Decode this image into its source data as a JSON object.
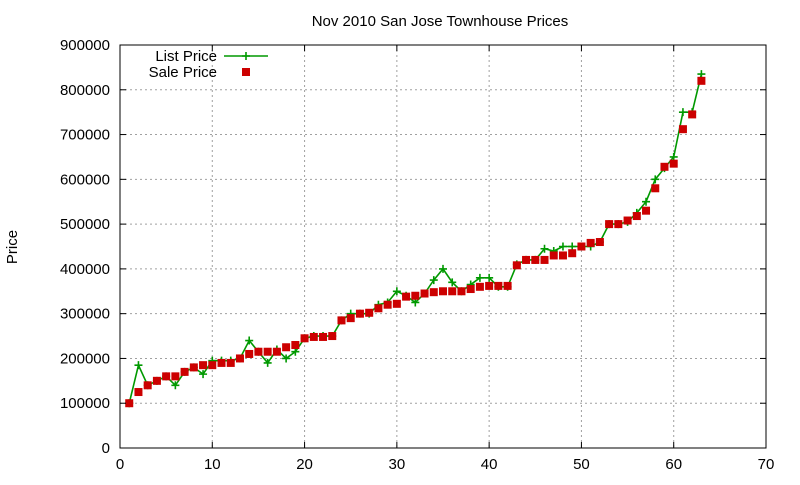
{
  "chart_data": {
    "type": "line",
    "title": "Nov 2010 San Jose Townhouse Prices",
    "xlabel": "",
    "ylabel": "Price",
    "xlim": [
      0,
      70
    ],
    "ylim": [
      0,
      900000
    ],
    "xticks": [
      0,
      10,
      20,
      30,
      40,
      50,
      60,
      70
    ],
    "yticks": [
      0,
      100000,
      200000,
      300000,
      400000,
      500000,
      600000,
      700000,
      800000,
      900000
    ],
    "grid": true,
    "legend_position": "top-left",
    "series": [
      {
        "name": "List Price",
        "style": "line-cross",
        "color": "#009900",
        "x": [
          1,
          2,
          3,
          4,
          5,
          6,
          7,
          8,
          9,
          10,
          11,
          12,
          13,
          14,
          15,
          16,
          17,
          18,
          19,
          20,
          21,
          22,
          23,
          24,
          25,
          26,
          27,
          28,
          29,
          30,
          31,
          32,
          33,
          34,
          35,
          36,
          37,
          38,
          39,
          40,
          41,
          42,
          43,
          44,
          45,
          46,
          47,
          48,
          49,
          50,
          51,
          52,
          53,
          54,
          55,
          56,
          57,
          58,
          59,
          60,
          61,
          62,
          63
        ],
        "y": [
          100000,
          185000,
          140000,
          150000,
          160000,
          140000,
          170000,
          180000,
          165000,
          195000,
          195000,
          195000,
          200000,
          240000,
          215000,
          190000,
          220000,
          200000,
          215000,
          245000,
          250000,
          250000,
          250000,
          285000,
          300000,
          300000,
          300000,
          320000,
          325000,
          350000,
          340000,
          325000,
          345000,
          375000,
          400000,
          370000,
          350000,
          365000,
          380000,
          380000,
          360000,
          360000,
          410000,
          420000,
          420000,
          445000,
          440000,
          450000,
          450000,
          450000,
          450000,
          460000,
          500000,
          500000,
          505000,
          525000,
          550000,
          600000,
          625000,
          650000,
          750000,
          750000,
          835000
        ]
      },
      {
        "name": "Sale Price",
        "style": "square-marker",
        "color": "#cc0000",
        "x": [
          1,
          2,
          3,
          4,
          5,
          6,
          7,
          8,
          9,
          10,
          11,
          12,
          13,
          14,
          15,
          16,
          17,
          18,
          19,
          20,
          21,
          22,
          23,
          24,
          25,
          26,
          27,
          28,
          29,
          30,
          31,
          32,
          33,
          34,
          35,
          36,
          37,
          38,
          39,
          40,
          41,
          42,
          43,
          44,
          45,
          46,
          47,
          48,
          49,
          50,
          51,
          52,
          53,
          54,
          55,
          56,
          57,
          58,
          59,
          60,
          61,
          62,
          63
        ],
        "y": [
          100000,
          125000,
          140000,
          150000,
          160000,
          160000,
          170000,
          180000,
          185000,
          185000,
          190000,
          190000,
          200000,
          210000,
          215000,
          215000,
          215000,
          225000,
          230000,
          245000,
          248000,
          248000,
          250000,
          285000,
          290000,
          300000,
          302000,
          312000,
          320000,
          322000,
          338000,
          340000,
          345000,
          348000,
          350000,
          350000,
          350000,
          355000,
          360000,
          362000,
          362000,
          362000,
          408000,
          420000,
          420000,
          420000,
          430000,
          430000,
          435000,
          450000,
          458000,
          460000,
          500000,
          500000,
          508000,
          518000,
          530000,
          580000,
          628000,
          635000,
          712000,
          745000,
          820000
        ]
      }
    ]
  }
}
